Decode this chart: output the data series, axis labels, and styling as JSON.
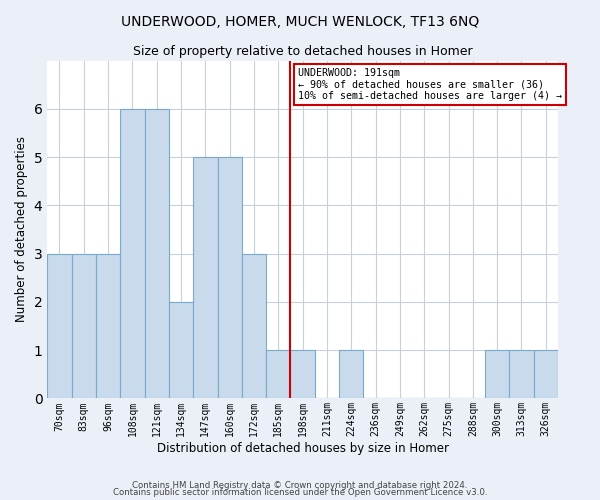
{
  "title": "UNDERWOOD, HOMER, MUCH WENLOCK, TF13 6NQ",
  "subtitle": "Size of property relative to detached houses in Homer",
  "xlabel": "Distribution of detached houses by size in Homer",
  "ylabel": "Number of detached properties",
  "bin_labels": [
    "70sqm",
    "83sqm",
    "96sqm",
    "108sqm",
    "121sqm",
    "134sqm",
    "147sqm",
    "160sqm",
    "172sqm",
    "185sqm",
    "198sqm",
    "211sqm",
    "224sqm",
    "236sqm",
    "249sqm",
    "262sqm",
    "275sqm",
    "288sqm",
    "300sqm",
    "313sqm",
    "326sqm"
  ],
  "bar_heights": [
    3,
    3,
    3,
    6,
    6,
    2,
    5,
    5,
    3,
    1,
    1,
    0,
    1,
    0,
    0,
    0,
    0,
    0,
    1,
    1,
    1
  ],
  "bar_color": "#c8daec",
  "bar_edge_color": "#7aaac8",
  "vline_index": 9.5,
  "vline_color": "#cc0000",
  "annotation_text": "UNDERWOOD: 191sqm\n← 90% of detached houses are smaller (36)\n10% of semi-detached houses are larger (4) →",
  "annotation_box_color": "#cc0000",
  "annotation_bg": "white",
  "ylim": [
    0,
    7
  ],
  "yticks": [
    0,
    1,
    2,
    3,
    4,
    5,
    6,
    7
  ],
  "footnote1": "Contains HM Land Registry data © Crown copyright and database right 2024.",
  "footnote2": "Contains public sector information licensed under the Open Government Licence v3.0.",
  "bg_color": "#eaeff8",
  "plot_bg_color": "white",
  "grid_color": "#c8d0dc",
  "title_fontsize": 10,
  "subtitle_fontsize": 9
}
